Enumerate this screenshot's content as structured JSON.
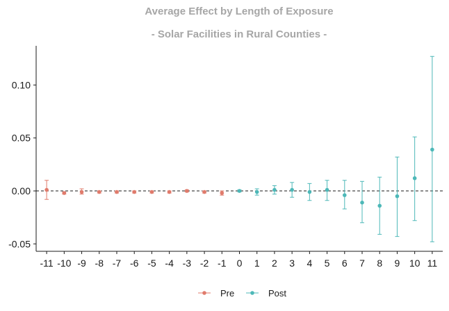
{
  "chart_data": {
    "type": "scatter",
    "title": "Average Effect by Length of Exposure",
    "subtitle": "- Solar Facilities in Rural Counties -",
    "xlabel": "",
    "ylabel": "",
    "x_ticks": [
      "-11",
      "-10",
      "-9",
      "-8",
      "-7",
      "-6",
      "-5",
      "-4",
      "-3",
      "-2",
      "-1",
      "0",
      "1",
      "2",
      "3",
      "4",
      "5",
      "6",
      "7",
      "8",
      "9",
      "10",
      "11"
    ],
    "y_ticks": [
      "0.10",
      "0.05",
      "0.00",
      "-0.05"
    ],
    "ylim": [
      -0.057,
      0.137
    ],
    "xlim": [
      -11.6,
      11.6
    ],
    "reference_line": 0,
    "legend_position": "bottom",
    "series": [
      {
        "name": "Pre",
        "color": "#e07b6c",
        "points": [
          {
            "x": -11,
            "y": 0.001,
            "lo": -0.008,
            "hi": 0.01
          },
          {
            "x": -10,
            "y": -0.002,
            "lo": -0.003,
            "hi": -0.001
          },
          {
            "x": -9,
            "y": -0.001,
            "lo": -0.003,
            "hi": 0.002
          },
          {
            "x": -8,
            "y": -0.001,
            "lo": -0.002,
            "hi": 0.0
          },
          {
            "x": -7,
            "y": -0.001,
            "lo": -0.002,
            "hi": 0.0
          },
          {
            "x": -6,
            "y": -0.001,
            "lo": -0.002,
            "hi": 0.0
          },
          {
            "x": -5,
            "y": -0.001,
            "lo": -0.002,
            "hi": 0.0
          },
          {
            "x": -4,
            "y": -0.001,
            "lo": -0.002,
            "hi": 0.0
          },
          {
            "x": -3,
            "y": 0.0,
            "lo": -0.001,
            "hi": 0.001
          },
          {
            "x": -2,
            "y": -0.001,
            "lo": -0.002,
            "hi": 0.0
          },
          {
            "x": -1,
            "y": -0.002,
            "lo": -0.004,
            "hi": 0.0
          }
        ]
      },
      {
        "name": "Post",
        "color": "#4db8b8",
        "points": [
          {
            "x": 0,
            "y": 0.0,
            "lo": -0.001,
            "hi": 0.001
          },
          {
            "x": 1,
            "y": -0.001,
            "lo": -0.004,
            "hi": 0.002
          },
          {
            "x": 2,
            "y": 0.001,
            "lo": -0.003,
            "hi": 0.005
          },
          {
            "x": 3,
            "y": 0.001,
            "lo": -0.006,
            "hi": 0.008
          },
          {
            "x": 4,
            "y": -0.001,
            "lo": -0.009,
            "hi": 0.007
          },
          {
            "x": 5,
            "y": 0.001,
            "lo": -0.009,
            "hi": 0.01
          },
          {
            "x": 6,
            "y": -0.004,
            "lo": -0.017,
            "hi": 0.01
          },
          {
            "x": 7,
            "y": -0.011,
            "lo": -0.03,
            "hi": 0.009
          },
          {
            "x": 8,
            "y": -0.014,
            "lo": -0.041,
            "hi": 0.013
          },
          {
            "x": 9,
            "y": -0.005,
            "lo": -0.043,
            "hi": 0.032
          },
          {
            "x": 10,
            "y": 0.012,
            "lo": -0.028,
            "hi": 0.051
          },
          {
            "x": 11,
            "y": 0.039,
            "lo": -0.048,
            "hi": 0.127
          }
        ]
      }
    ]
  }
}
